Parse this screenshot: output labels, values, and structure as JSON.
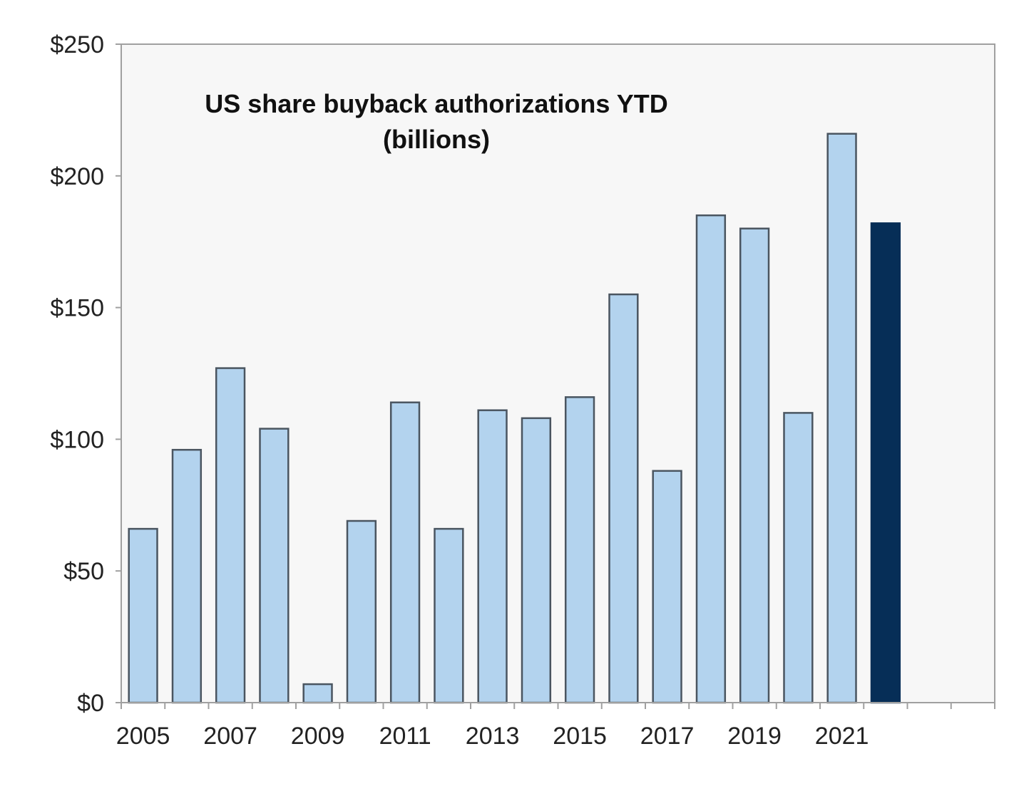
{
  "chart_data": {
    "type": "bar",
    "title": "US share buyback authorizations YTD",
    "subtitle": "(billions)",
    "xlabel": "",
    "ylabel": "",
    "ylim": [
      0,
      250
    ],
    "y_ticks": [
      0,
      50,
      100,
      150,
      200,
      250
    ],
    "y_tick_labels": [
      "$0",
      "$50",
      "$100",
      "$150",
      "$200",
      "$250"
    ],
    "categories": [
      "2005",
      "2006",
      "2007",
      "2008",
      "2009",
      "2010",
      "2011",
      "2012",
      "2013",
      "2014",
      "2015",
      "2016",
      "2017",
      "2018",
      "2019",
      "2020",
      "2021",
      "2022"
    ],
    "x_tick_labels": [
      "2005",
      "",
      "2007",
      "",
      "2009",
      "",
      "2011",
      "",
      "2013",
      "",
      "2015",
      "",
      "2017",
      "",
      "2019",
      "",
      "2021",
      ""
    ],
    "values": [
      66,
      96,
      127,
      104,
      7,
      69,
      114,
      66,
      111,
      108,
      116,
      155,
      88,
      185,
      180,
      110,
      216,
      182
    ],
    "extra_empty_slots": 2,
    "bar_colors": {
      "default": "#b3d3ee",
      "highlight": "#062e57",
      "outline": "#4a5560"
    },
    "highlight_index": 17,
    "plot_background": "#f7f7f7",
    "axis_color": "#a0a0a0",
    "grid": false,
    "legend": "none"
  }
}
